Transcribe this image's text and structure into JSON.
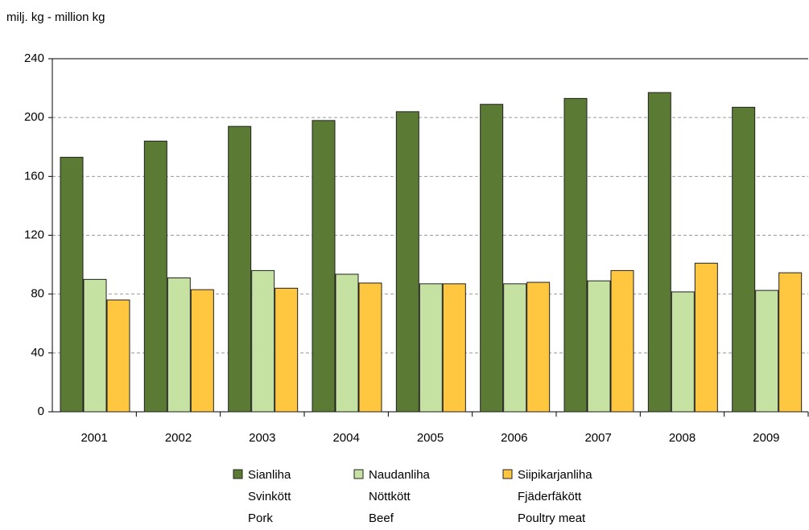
{
  "chart_data": {
    "type": "bar",
    "y_label": "milj. kg - million kg",
    "categories": [
      "2001",
      "2002",
      "2003",
      "2004",
      "2005",
      "2006",
      "2007",
      "2008",
      "2009"
    ],
    "series": [
      {
        "name": [
          "Sianliha",
          "Svinkött",
          "Pork"
        ],
        "color": "#5b7b34",
        "values": [
          173,
          184,
          194,
          198,
          204,
          209,
          213,
          217,
          207
        ]
      },
      {
        "name": [
          "Naudanliha",
          "Nöttkött",
          "Beef"
        ],
        "color": "#c6e2a2",
        "values": [
          90,
          91,
          96,
          93.5,
          87,
          87,
          89,
          81.5,
          82.5
        ]
      },
      {
        "name": [
          "Siipikarjanliha",
          "Fjäderfäkött",
          "Poultry meat"
        ],
        "color": "#ffc640",
        "values": [
          76,
          83,
          84,
          87.5,
          87,
          88,
          96,
          101,
          94.5
        ]
      }
    ],
    "ylim": [
      0,
      240
    ],
    "yticks": [
      0,
      40,
      80,
      120,
      160,
      200,
      240
    ],
    "grid": true
  }
}
